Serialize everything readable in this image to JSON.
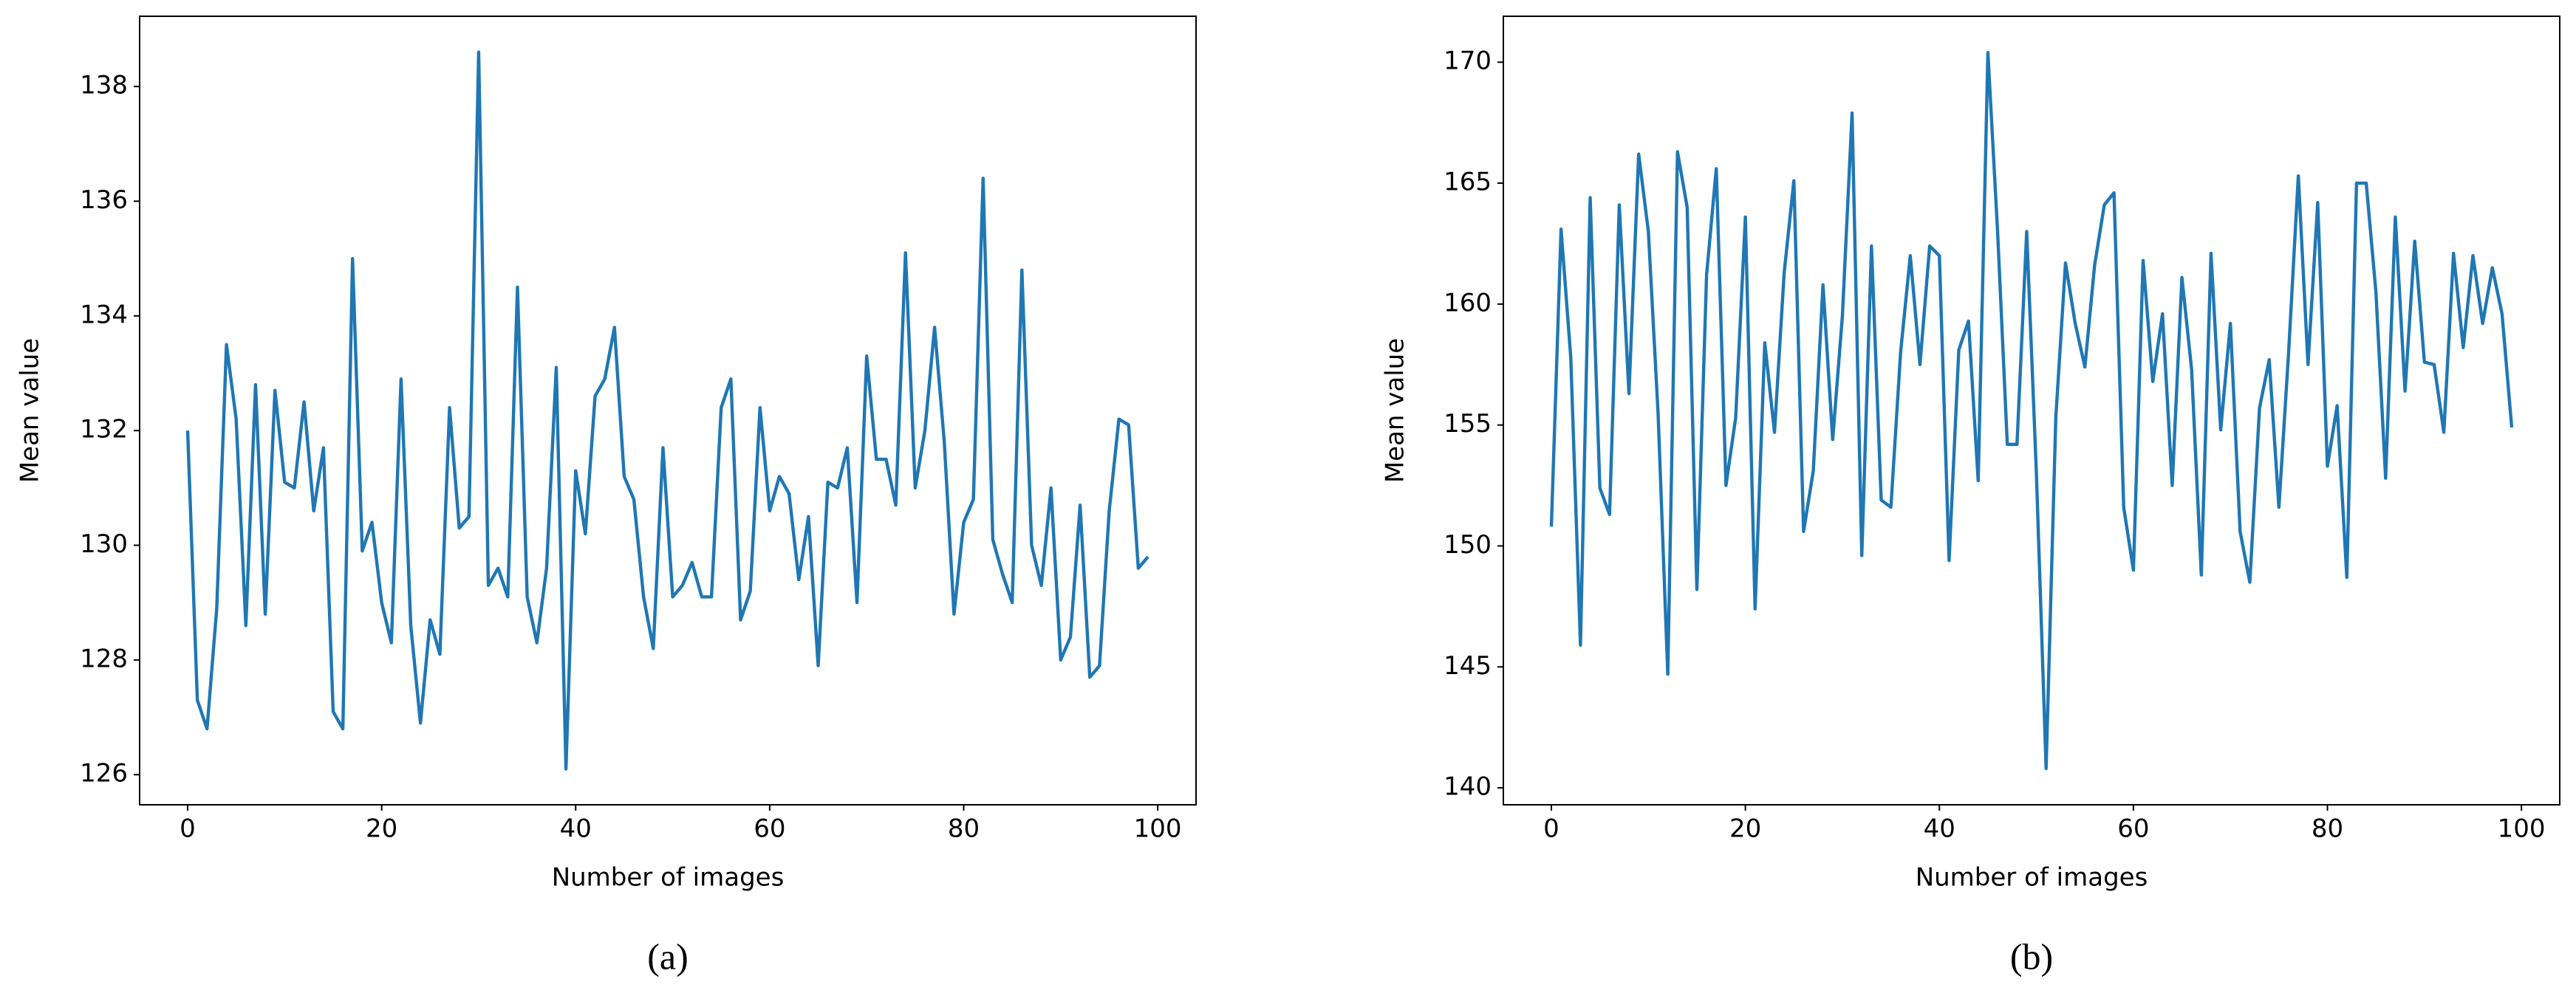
{
  "chart_data": [
    {
      "type": "line",
      "caption": "(a)",
      "x_label": "Number of images",
      "y_label": "Mean value",
      "x": [
        0,
        1,
        2,
        3,
        4,
        5,
        6,
        7,
        8,
        9,
        10,
        11,
        12,
        13,
        14,
        15,
        16,
        17,
        18,
        19,
        20,
        21,
        22,
        23,
        24,
        25,
        26,
        27,
        28,
        29,
        30,
        31,
        32,
        33,
        34,
        35,
        36,
        37,
        38,
        39,
        40,
        41,
        42,
        43,
        44,
        45,
        46,
        47,
        48,
        49,
        50,
        51,
        52,
        53,
        54,
        55,
        56,
        57,
        58,
        59,
        60,
        61,
        62,
        63,
        64,
        65,
        66,
        67,
        68,
        69,
        70,
        71,
        72,
        73,
        74,
        75,
        76,
        77,
        78,
        79,
        80,
        81,
        82,
        83,
        84,
        85,
        86,
        87,
        88,
        89,
        90,
        91,
        92,
        93,
        94,
        95,
        96,
        97,
        98,
        99
      ],
      "series": [
        {
          "color": "#1f77b4",
          "values": [
            132.0,
            127.3,
            126.8,
            128.9,
            133.5,
            132.2,
            128.6,
            132.8,
            128.8,
            132.7,
            131.1,
            131.0,
            132.5,
            130.6,
            131.7,
            127.1,
            126.8,
            135.0,
            129.9,
            130.4,
            129.0,
            128.3,
            132.9,
            128.6,
            126.9,
            128.7,
            128.1,
            132.4,
            130.3,
            130.5,
            138.6,
            129.3,
            129.6,
            129.1,
            134.5,
            129.1,
            128.3,
            129.6,
            133.1,
            126.1,
            131.3,
            130.2,
            132.6,
            132.9,
            133.8,
            131.2,
            130.8,
            129.1,
            128.2,
            131.7,
            129.1,
            129.3,
            129.7,
            129.1,
            129.1,
            132.4,
            132.9,
            128.7,
            129.2,
            132.4,
            130.6,
            131.2,
            130.9,
            129.4,
            130.5,
            127.9,
            131.1,
            131.0,
            131.7,
            129.0,
            133.3,
            131.5,
            131.5,
            130.7,
            135.1,
            131.0,
            132.0,
            133.8,
            131.8,
            128.8,
            130.4,
            130.8,
            136.4,
            130.1,
            129.5,
            129.0,
            134.8,
            130.0,
            129.3,
            131.0,
            128.0,
            128.4,
            130.7,
            127.7,
            127.9,
            130.6,
            132.2,
            132.1,
            129.6,
            129.8
          ]
        }
      ],
      "xlim": [
        -4.95,
        103.95
      ],
      "xticks": [
        0,
        20,
        40,
        60,
        80,
        100
      ],
      "ylim": [
        125.475,
        139.225
      ],
      "yticks": [
        126,
        128,
        130,
        132,
        134,
        136,
        138
      ]
    },
    {
      "type": "line",
      "caption": "(b)",
      "x_label": "Number of images",
      "y_label": "Mean value",
      "x": [
        0,
        1,
        2,
        3,
        4,
        5,
        6,
        7,
        8,
        9,
        10,
        11,
        12,
        13,
        14,
        15,
        16,
        17,
        18,
        19,
        20,
        21,
        22,
        23,
        24,
        25,
        26,
        27,
        28,
        29,
        30,
        31,
        32,
        33,
        34,
        35,
        36,
        37,
        38,
        39,
        40,
        41,
        42,
        43,
        44,
        45,
        46,
        47,
        48,
        49,
        50,
        51,
        52,
        53,
        54,
        55,
        56,
        57,
        58,
        59,
        60,
        61,
        62,
        63,
        64,
        65,
        66,
        67,
        68,
        69,
        70,
        71,
        72,
        73,
        74,
        75,
        76,
        77,
        78,
        79,
        80,
        81,
        82,
        83,
        84,
        85,
        86,
        87,
        88,
        89,
        90,
        91,
        92,
        93,
        94,
        95,
        96,
        97,
        98,
        99
      ],
      "series": [
        {
          "color": "#1f77b4",
          "values": [
            150.8,
            163.1,
            157.8,
            145.9,
            164.4,
            152.4,
            151.3,
            164.1,
            156.3,
            166.2,
            163.0,
            155.5,
            144.7,
            166.3,
            164.0,
            148.2,
            161.2,
            165.6,
            152.5,
            155.3,
            163.6,
            147.4,
            158.4,
            154.7,
            161.3,
            165.1,
            150.6,
            153.1,
            160.8,
            154.4,
            159.5,
            167.9,
            149.6,
            162.4,
            151.9,
            151.6,
            158.0,
            162.0,
            157.5,
            162.4,
            162.0,
            149.4,
            158.1,
            159.3,
            152.7,
            170.4,
            163.0,
            154.2,
            154.2,
            163.0,
            153.0,
            140.8,
            155.3,
            161.7,
            159.2,
            157.4,
            161.6,
            164.1,
            164.6,
            151.6,
            149.0,
            161.8,
            156.8,
            159.6,
            152.5,
            161.1,
            157.3,
            148.8,
            162.1,
            154.8,
            159.2,
            150.6,
            148.5,
            155.7,
            157.7,
            151.6,
            158.0,
            165.3,
            157.5,
            164.2,
            153.3,
            155.8,
            148.7,
            165.0,
            165.0,
            160.5,
            152.8,
            163.6,
            156.4,
            162.6,
            157.6,
            157.5,
            154.7,
            162.1,
            158.2,
            162.0,
            159.2,
            161.5,
            159.6,
            154.9
          ]
        }
      ],
      "xlim": [
        -4.95,
        103.95
      ],
      "xticks": [
        0,
        20,
        40,
        60,
        80,
        100
      ],
      "ylim": [
        139.3,
        171.9
      ],
      "yticks": [
        140,
        145,
        150,
        155,
        160,
        165,
        170
      ]
    }
  ]
}
